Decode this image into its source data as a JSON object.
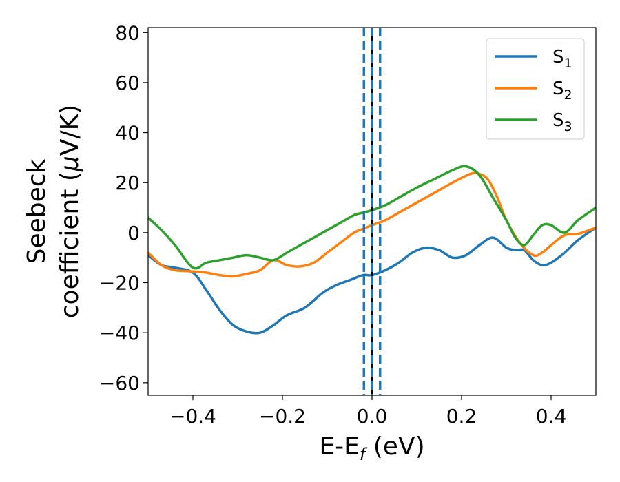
{
  "chart_data": {
    "type": "line",
    "xlabel": {
      "base": "E-E",
      "sub": "f",
      "rest": " (eV)"
    },
    "ylabel": {
      "line1": "Seebeck",
      "line2_pre": "coefficient  (",
      "mu": "μ",
      "line2_post": "V/K)"
    },
    "xlim": [
      -0.5,
      0.5
    ],
    "ylim": [
      -65,
      82
    ],
    "xticks": [
      -0.4,
      -0.2,
      0.0,
      0.2,
      0.4
    ],
    "xtick_labels": [
      "−0.4",
      "−0.2",
      "0.0",
      "0.2",
      "0.4"
    ],
    "yticks": [
      -60,
      -40,
      -20,
      0,
      20,
      40,
      60,
      80
    ],
    "ytick_labels": [
      "−60",
      "−40",
      "−20",
      "0",
      "20",
      "40",
      "60",
      "80"
    ],
    "grid": false,
    "legend_position": "top-right",
    "vlines": [
      {
        "x": 0.0,
        "color": "#000000",
        "style": "solid"
      },
      {
        "x": -0.018,
        "color": "#1f77b4",
        "style": "dashed"
      },
      {
        "x": 0.0,
        "color": "#1f77b4",
        "style": "dashed"
      },
      {
        "x": 0.018,
        "color": "#1f77b4",
        "style": "dashed"
      }
    ],
    "series": [
      {
        "name": "S",
        "sub": "1",
        "color": "#1f77b4",
        "x": [
          -0.5,
          -0.47,
          -0.44,
          -0.4,
          -0.37,
          -0.34,
          -0.31,
          -0.28,
          -0.25,
          -0.22,
          -0.19,
          -0.15,
          -0.11,
          -0.08,
          -0.05,
          -0.02,
          0.0,
          0.03,
          0.06,
          0.09,
          0.12,
          0.15,
          0.18,
          0.21,
          0.24,
          0.27,
          0.3,
          0.32,
          0.34,
          0.36,
          0.38,
          0.4,
          0.43,
          0.46,
          0.5
        ],
        "y": [
          -9,
          -13,
          -14,
          -16,
          -23,
          -31,
          -37,
          -39.5,
          -40,
          -37,
          -33,
          -30,
          -24,
          -21,
          -19,
          -17,
          -17,
          -15,
          -12,
          -8,
          -6,
          -7,
          -10,
          -9,
          -5,
          -2,
          -6,
          -7,
          -7,
          -11,
          -13,
          -12,
          -8,
          -3,
          2
        ]
      },
      {
        "name": "S",
        "sub": "2",
        "color": "#ff7f0e",
        "x": [
          -0.5,
          -0.47,
          -0.44,
          -0.4,
          -0.37,
          -0.34,
          -0.31,
          -0.28,
          -0.25,
          -0.22,
          -0.19,
          -0.16,
          -0.13,
          -0.1,
          -0.07,
          -0.04,
          -0.02,
          0.0,
          0.03,
          0.06,
          0.1,
          0.14,
          0.18,
          0.22,
          0.24,
          0.26,
          0.28,
          0.3,
          0.33,
          0.36,
          0.38,
          0.4,
          0.43,
          0.46,
          0.5
        ],
        "y": [
          -8,
          -13,
          -15,
          -15.5,
          -16,
          -17,
          -17.5,
          -16.5,
          -15,
          -11,
          -13,
          -13.5,
          -12,
          -8,
          -4,
          0,
          1.5,
          3,
          5,
          8,
          12,
          16,
          20,
          23.5,
          23.5,
          21,
          14,
          5,
          -4,
          -9,
          -8,
          -5,
          -1,
          -0.5,
          2
        ]
      },
      {
        "name": "S",
        "sub": "3",
        "color": "#2ca02c",
        "x": [
          -0.5,
          -0.47,
          -0.44,
          -0.4,
          -0.37,
          -0.34,
          -0.31,
          -0.28,
          -0.25,
          -0.22,
          -0.19,
          -0.16,
          -0.13,
          -0.1,
          -0.07,
          -0.04,
          -0.02,
          0.0,
          0.03,
          0.06,
          0.1,
          0.14,
          0.18,
          0.21,
          0.24,
          0.27,
          0.3,
          0.32,
          0.34,
          0.36,
          0.38,
          0.4,
          0.43,
          0.46,
          0.5
        ],
        "y": [
          6,
          1,
          -5,
          -14,
          -12,
          -11,
          -10,
          -9,
          -10,
          -11,
          -8,
          -5,
          -2,
          1,
          4,
          7,
          8,
          9,
          11,
          14,
          18,
          21.5,
          25,
          26.5,
          23,
          14,
          5,
          -2,
          -5,
          -1,
          3,
          3,
          0,
          5,
          10
        ]
      }
    ]
  }
}
